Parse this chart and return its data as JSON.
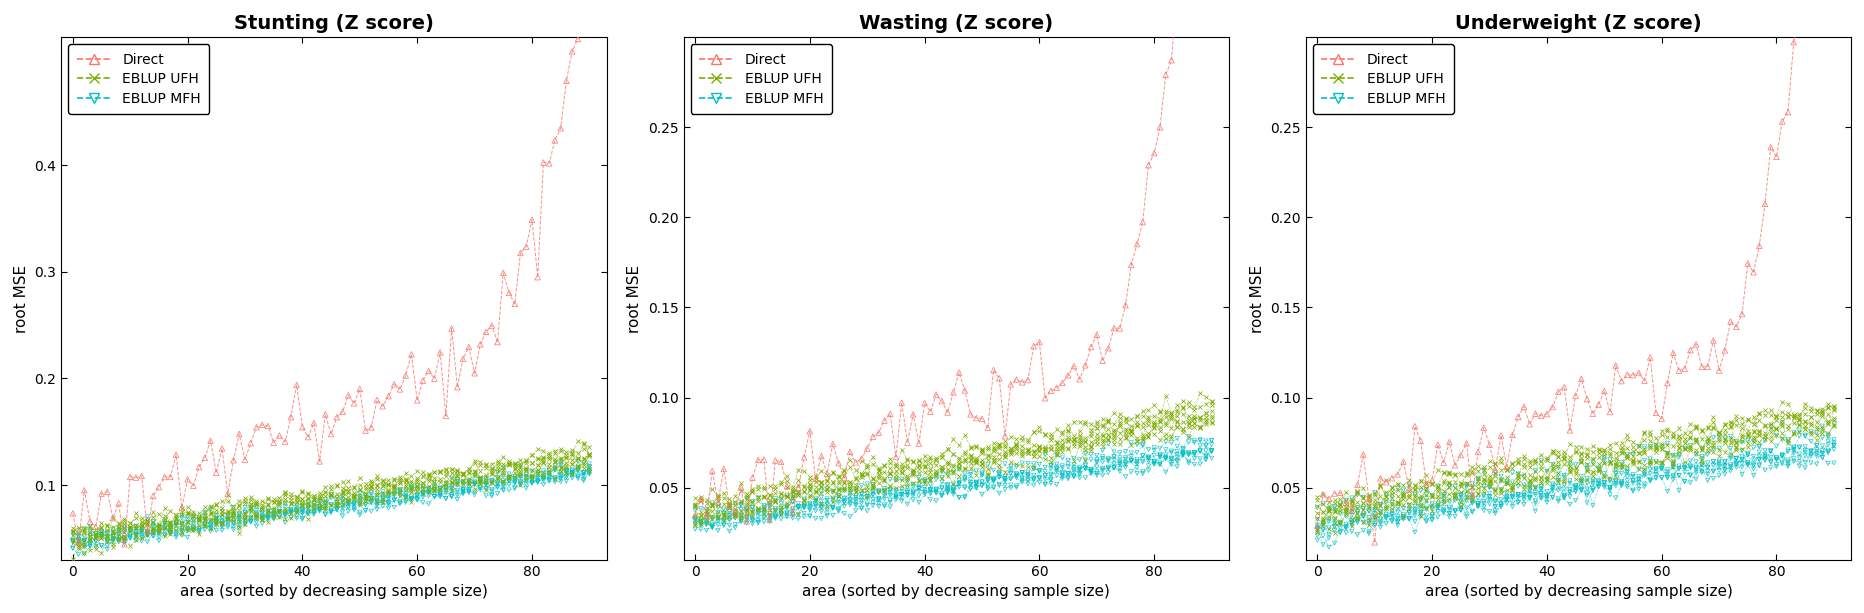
{
  "titles": [
    "Stunting (Z score)",
    "Wasting (Z score)",
    "Underweight (Z score)"
  ],
  "xlabel": "area (sorted by decreasing sample size)",
  "ylabel": "root MSE",
  "n_areas": 91,
  "colors": {
    "direct": "#F8766D",
    "ufh": "#7CAE00",
    "mfh": "#00BFC4"
  },
  "stunting": {
    "ylim": [
      0.03,
      0.52
    ],
    "yticks": [
      0.1,
      0.2,
      0.3,
      0.4
    ],
    "direct_base": 0.065,
    "direct_scale": 0.0022,
    "direct_noise_sd": 0.018,
    "ufh_base": 0.052,
    "ufh_scale": 0.00085,
    "ufh_noise_sd": 0.004,
    "mfh_base": 0.045,
    "mfh_scale": 0.00075,
    "mfh_noise_sd": 0.003,
    "n_ufh_lines": 5,
    "n_mfh_lines": 5
  },
  "wasting": {
    "ylim": [
      0.01,
      0.3
    ],
    "yticks": [
      0.05,
      0.1,
      0.15,
      0.2,
      0.25
    ],
    "direct_base": 0.038,
    "direct_scale": 0.0012,
    "direct_noise_sd": 0.01,
    "ufh_base": 0.037,
    "ufh_scale": 0.0006,
    "ufh_noise_sd": 0.003,
    "mfh_base": 0.03,
    "mfh_scale": 0.00045,
    "mfh_noise_sd": 0.002,
    "n_ufh_lines": 5,
    "n_mfh_lines": 5
  },
  "underweight": {
    "ylim": [
      0.01,
      0.3
    ],
    "yticks": [
      0.05,
      0.1,
      0.15,
      0.2,
      0.25
    ],
    "direct_base": 0.04,
    "direct_scale": 0.0012,
    "direct_noise_sd": 0.01,
    "ufh_base": 0.038,
    "ufh_scale": 0.0006,
    "ufh_noise_sd": 0.003,
    "mfh_base": 0.03,
    "mfh_scale": 0.0005,
    "mfh_noise_sd": 0.003,
    "n_ufh_lines": 5,
    "n_mfh_lines": 5
  },
  "legend_labels": [
    "Direct",
    "EBLUP UFH",
    "EBLUP MFH"
  ],
  "title_fontsize": 14,
  "label_fontsize": 11,
  "tick_fontsize": 10,
  "legend_fontsize": 10,
  "figure_width": 18.65,
  "figure_height": 6.13
}
